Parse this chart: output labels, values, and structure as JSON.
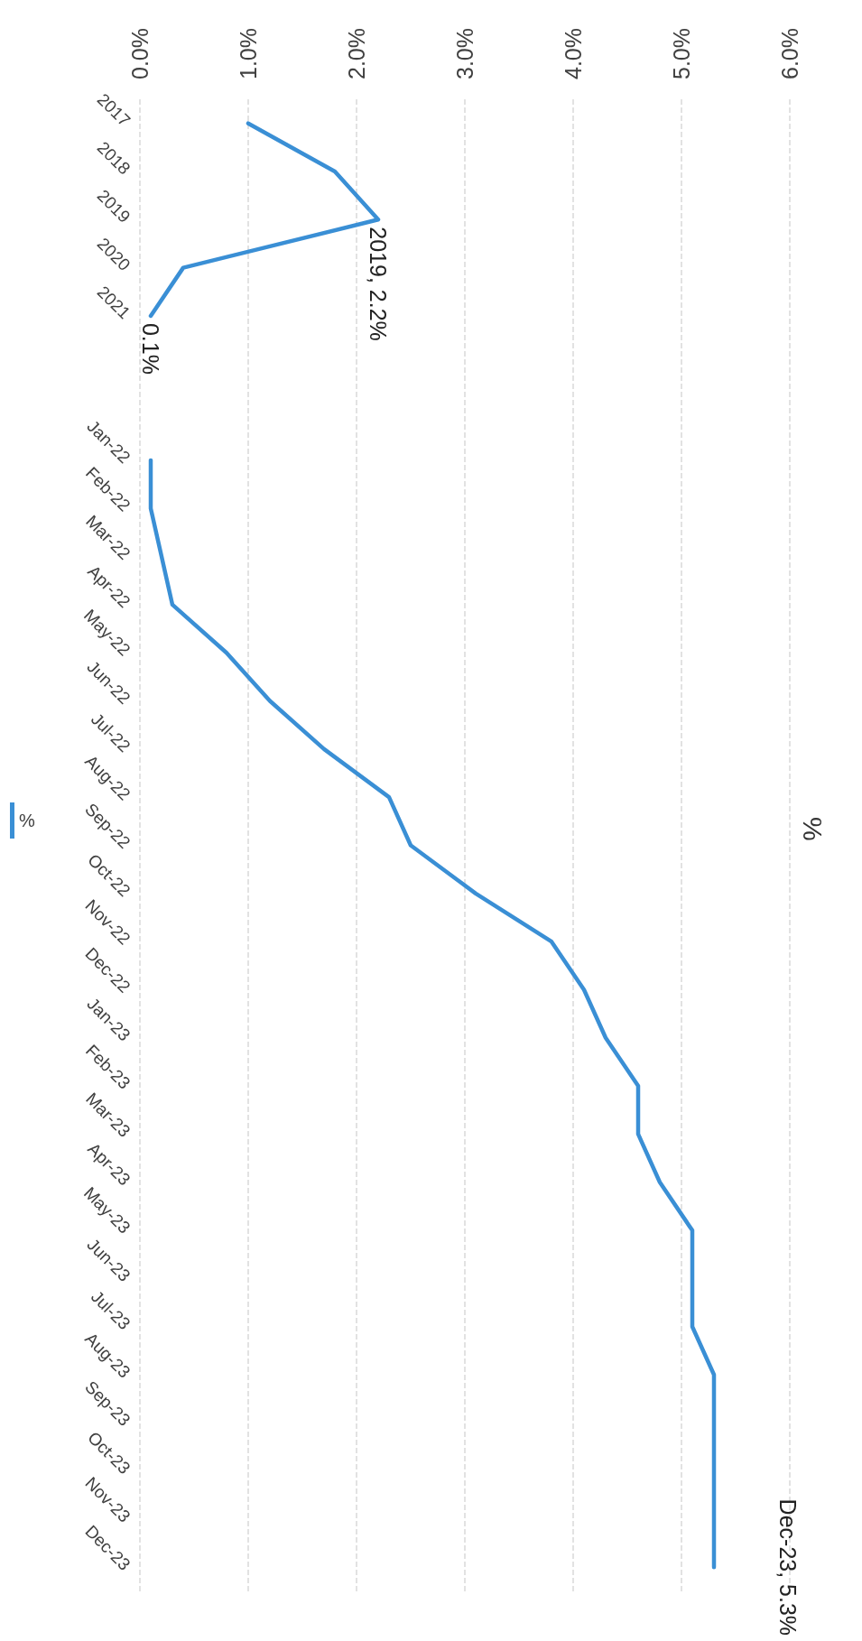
{
  "chart_data": {
    "type": "line",
    "title": "%",
    "categories": [
      "2017",
      "2018",
      "2019",
      "2020",
      "2021",
      null,
      null,
      "Jan-22",
      "Feb-22",
      "Mar-22",
      "Apr-22",
      "May-22",
      "Jun-22",
      "Jul-22",
      "Aug-22",
      "Sep-22",
      "Oct-22",
      "Nov-22",
      "Dec-22",
      "Jan-23",
      "Feb-23",
      "Mar-23",
      "Apr-23",
      "May-23",
      "Jun-23",
      "Jul-23",
      "Aug-23",
      "Sep-23",
      "Oct-23",
      "Nov-23",
      "Dec-23"
    ],
    "series": [
      {
        "name": "%",
        "color": "#3a8fd5",
        "values": [
          1.0,
          1.8,
          2.2,
          0.4,
          0.1,
          null,
          null,
          0.1,
          0.1,
          0.2,
          0.3,
          0.8,
          1.2,
          1.7,
          2.3,
          2.5,
          3.1,
          3.8,
          4.1,
          4.3,
          4.6,
          4.6,
          4.8,
          5.1,
          5.1,
          5.1,
          5.3,
          5.3,
          5.3,
          5.3,
          5.3
        ]
      }
    ],
    "orientation": "horizontal",
    "xlim": [
      0,
      6
    ],
    "xticks": [
      {
        "value": 0,
        "label": "0.0%"
      },
      {
        "value": 1,
        "label": "1.0%"
      },
      {
        "value": 2,
        "label": "2.0%"
      },
      {
        "value": 3,
        "label": "3.0%"
      },
      {
        "value": 4,
        "label": "4.0%"
      },
      {
        "value": 5,
        "label": "5.0%"
      },
      {
        "value": 6,
        "label": "6.0%"
      }
    ],
    "annotations": [
      {
        "text": "2019, 2.2%",
        "x": 2.2,
        "y": "2019"
      },
      {
        "text": "0.1%",
        "x": 0.1,
        "y": "2021"
      },
      {
        "text": "Dec-23, 5.3%",
        "x": 5.3,
        "y": "Dec-23"
      }
    ],
    "grid": "x",
    "legend": "left",
    "marker": "none",
    "line_style": "solid"
  }
}
